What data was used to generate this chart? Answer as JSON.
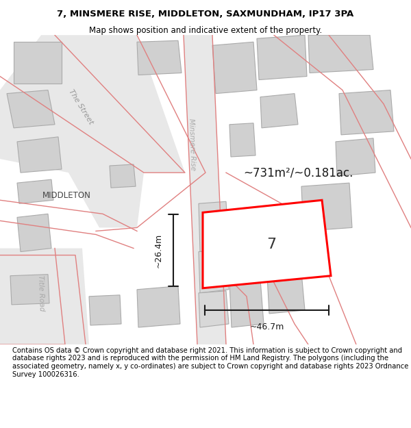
{
  "title_line1": "7, MINSMERE RISE, MIDDLETON, SAXMUNDHAM, IP17 3PA",
  "title_line2": "Map shows position and indicative extent of the property.",
  "footer_text": "Contains OS data © Crown copyright and database right 2021. This information is subject to Crown copyright and database rights 2023 and is reproduced with the permission of HM Land Registry. The polygons (including the associated geometry, namely x, y co-ordinates) are subject to Crown copyright and database rights 2023 Ordnance Survey 100026316.",
  "area_label": "~731m²/~0.181ac.",
  "plot_label": "7",
  "dim_horizontal": "~46.7m",
  "dim_vertical": "~26.4m",
  "label_middleton": "MIDDLETON",
  "label_street": "The Street",
  "label_minsmere": "Minsmere Rise",
  "label_title_road": "Title Road",
  "bg_color": "#ffffff",
  "map_bg": "#f5f5f5",
  "road_fill": "#e8e8e8",
  "building_fill": "#d0d0d0",
  "plot_outline_color": "#ff0000",
  "dim_line_color": "#1a1a1a",
  "road_line_color": "#e08080",
  "title_fontsize": 9.5,
  "footer_fontsize": 7.5
}
